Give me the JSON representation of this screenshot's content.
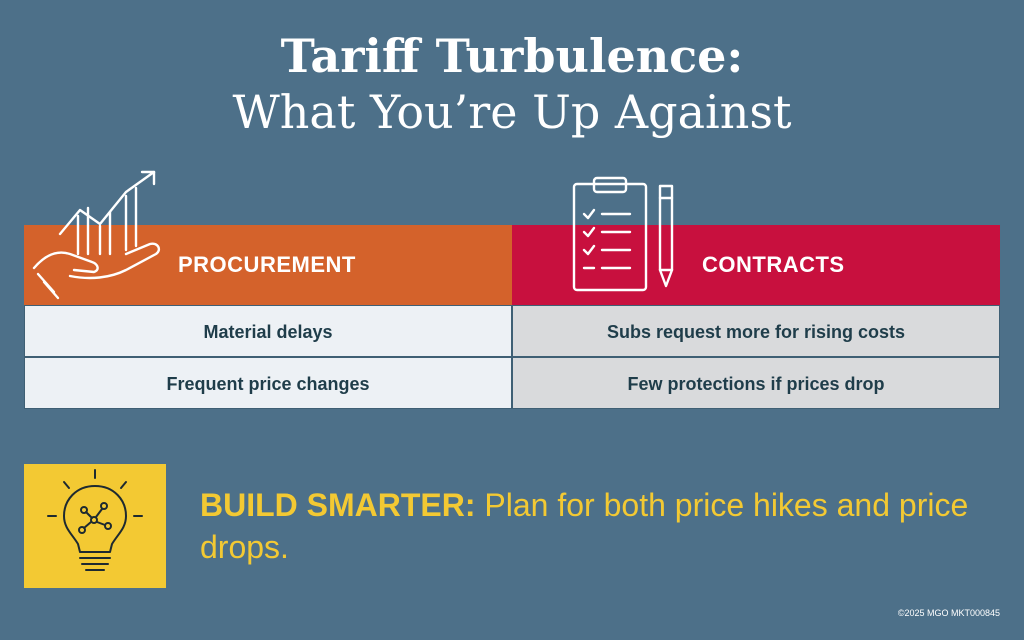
{
  "title": {
    "line1": "Tariff Turbulence:",
    "line2": "What You’re Up Against"
  },
  "columns": [
    {
      "header": "PROCUREMENT",
      "icon": "hand-growth-chart-icon",
      "color": "#d4622b",
      "items": [
        "Material delays",
        "Frequent price changes"
      ]
    },
    {
      "header": "CONTRACTS",
      "icon": "clipboard-checklist-icon",
      "color": "#c8103e",
      "items": [
        "Subs request more for rising costs",
        "Few protections if prices drop"
      ]
    }
  ],
  "tip": {
    "label": "BUILD SMARTER:",
    "text": " Plan for both price hikes and price drops.",
    "icon": "lightbulb-icon"
  },
  "footer": "©2025 MGO  MKT000845",
  "colors": {
    "background": "#4d7089",
    "accent_yellow": "#f3c933"
  }
}
